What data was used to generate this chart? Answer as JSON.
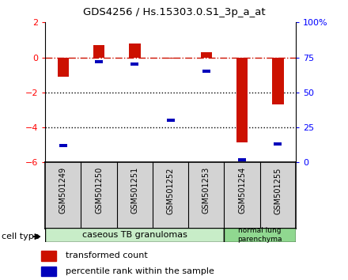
{
  "title": "GDS4256 / Hs.15303.0.S1_3p_a_at",
  "samples": [
    "GSM501249",
    "GSM501250",
    "GSM501251",
    "GSM501252",
    "GSM501253",
    "GSM501254",
    "GSM501255"
  ],
  "red_values": [
    -1.1,
    0.7,
    0.78,
    -0.05,
    0.3,
    -4.85,
    -2.7
  ],
  "blue_values_pct": [
    12,
    72,
    70,
    30,
    65,
    2,
    13
  ],
  "ylim_left": [
    -6,
    2
  ],
  "ylim_right": [
    0,
    100
  ],
  "right_ticks": [
    0,
    25,
    50,
    75,
    100
  ],
  "right_tick_labels": [
    "0",
    "25",
    "50",
    "75",
    "100%"
  ],
  "left_ticks": [
    -6,
    -4,
    -2,
    0,
    2
  ],
  "n_group1": 5,
  "n_group2": 2,
  "group1_label": "caseous TB granulomas",
  "group2_label": "normal lung\nparenchyma",
  "group1_color": "#c8edc8",
  "group2_color": "#90d890",
  "cell_type_label": "cell type",
  "red_color": "#cc1100",
  "blue_color": "#0000bb",
  "legend_red": "transformed count",
  "legend_blue": "percentile rank within the sample",
  "hline_color": "#cc1100",
  "dotted_color": "#000000"
}
